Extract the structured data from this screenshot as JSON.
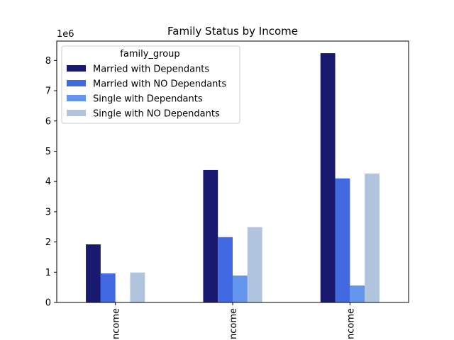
{
  "chart_data": {
    "type": "bar",
    "title": "Family Status by Income",
    "scale_label": "1e6",
    "categories": [
      "Low Income",
      "Middle Income",
      "High Income"
    ],
    "visible_category_labels": [
      "ncome",
      "ncome",
      "ncome"
    ],
    "ylim": [
      0,
      8.64
    ],
    "yticks": [
      0,
      1,
      2,
      3,
      4,
      5,
      6,
      7,
      8
    ],
    "ytick_labels": [
      "0",
      "1",
      "2",
      "3",
      "4",
      "5",
      "6",
      "7",
      "8"
    ],
    "y_unit_multiplier": 1000000,
    "legend": {
      "title": "family_group",
      "placement": "top-left"
    },
    "grid": false,
    "series": [
      {
        "name": "Married with Dependants",
        "color": "#191970",
        "values": [
          1.92,
          4.38,
          8.24
        ]
      },
      {
        "name": "Married with NO Dependants",
        "color": "#4169e1",
        "values": [
          0.96,
          2.16,
          4.1
        ]
      },
      {
        "name": "Single with Dependants",
        "color": "#6495ed",
        "values": [
          0.0,
          0.89,
          0.56
        ]
      },
      {
        "name": "Single with NO Dependants",
        "color": "#b0c4de",
        "values": [
          0.99,
          2.49,
          4.26
        ]
      }
    ]
  }
}
